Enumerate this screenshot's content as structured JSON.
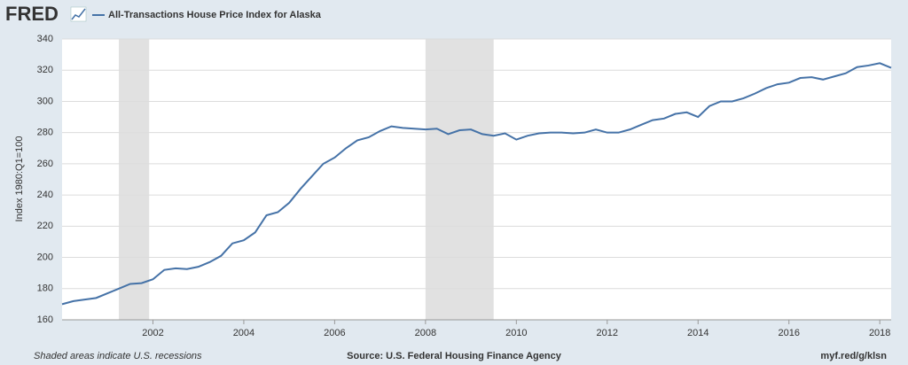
{
  "chart_data": {
    "type": "line",
    "logo": "FRED",
    "title": "All-Transactions House Price Index for Alaska",
    "y_label": "Index 1980:Q1=100",
    "footer_left": "Shaded areas indicate U.S. recessions",
    "footer_center": "Source: U.S. Federal Housing Finance Agency",
    "footer_right": "myf.red/g/klsn",
    "x": [
      2000,
      2000.25,
      2000.5,
      2000.75,
      2001,
      2001.25,
      2001.5,
      2001.75,
      2002,
      2002.25,
      2002.5,
      2002.75,
      2003,
      2003.25,
      2003.5,
      2003.75,
      2004,
      2004.25,
      2004.5,
      2004.75,
      2005,
      2005.25,
      2005.5,
      2005.75,
      2006,
      2006.25,
      2006.5,
      2006.75,
      2007,
      2007.25,
      2007.5,
      2007.75,
      2008,
      2008.25,
      2008.5,
      2008.75,
      2009,
      2009.25,
      2009.5,
      2009.75,
      2010,
      2010.25,
      2010.5,
      2010.75,
      2011,
      2011.25,
      2011.5,
      2011.75,
      2012,
      2012.25,
      2012.5,
      2012.75,
      2013,
      2013.25,
      2013.5,
      2013.75,
      2014,
      2014.25,
      2014.5,
      2014.75,
      2015,
      2015.25,
      2015.5,
      2015.75,
      2016,
      2016.25,
      2016.5,
      2016.75,
      2017,
      2017.25,
      2017.5,
      2017.75,
      2018,
      2018.25
    ],
    "series": [
      {
        "name": "All-Transactions House Price Index for Alaska",
        "color": "#4572a7",
        "values": [
          170,
          172,
          173,
          174,
          177,
          180,
          183,
          183.5,
          186,
          192,
          193,
          192.5,
          194,
          197,
          201,
          209,
          211,
          216,
          227,
          229,
          235,
          244,
          252,
          260,
          264,
          270,
          275,
          277,
          281,
          284,
          283,
          282.5,
          282,
          282.5,
          279,
          281.5,
          282,
          279,
          278,
          279.5,
          275.5,
          278,
          279.5,
          280,
          280,
          279.5,
          280,
          282,
          280,
          280,
          282,
          285,
          288,
          289,
          292,
          293,
          290,
          297,
          300,
          300,
          302,
          305,
          308.5,
          311,
          312,
          315,
          315.5,
          314,
          316,
          318,
          322,
          323,
          324.5,
          321.5
        ]
      }
    ],
    "recessions": [
      [
        2001.25,
        2001.917
      ],
      [
        2008,
        2009.5
      ]
    ],
    "recession_color": "#e1e1e1",
    "xlim": [
      2000,
      2018.25
    ],
    "xticks": [
      2002,
      2004,
      2006,
      2008,
      2010,
      2012,
      2014,
      2016,
      2018
    ],
    "ylim": [
      160,
      340
    ],
    "yticks": [
      160,
      180,
      200,
      220,
      240,
      260,
      280,
      300,
      320,
      340
    ],
    "grid": true
  }
}
